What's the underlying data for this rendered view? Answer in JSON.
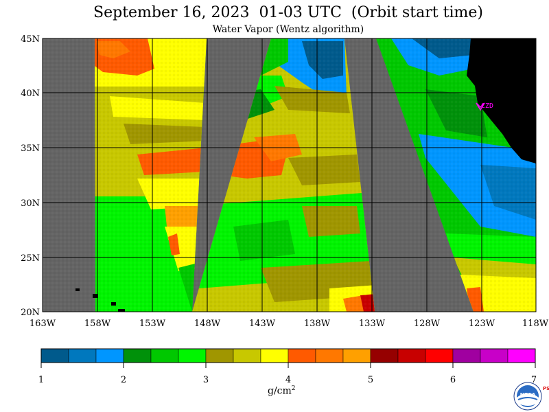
{
  "title": "September 16, 2023  01-03 UTC  (Orbit start time)",
  "subtitle": "Water Vapor (Wentz algorithm)",
  "lat_labels": [
    "45N",
    "40N",
    "35N",
    "30N",
    "25N",
    "20N"
  ],
  "lon_labels": [
    "163W",
    "158W",
    "153W",
    "148W",
    "143W",
    "138W",
    "133W",
    "128W",
    "123W",
    "118W"
  ],
  "colorbar": {
    "colors": [
      "#005a8c",
      "#0078be",
      "#0096ff",
      "#00910a",
      "#00c800",
      "#00f500",
      "#a09600",
      "#c8c800",
      "#ffff00",
      "#ff5a00",
      "#ff7800",
      "#ffa000",
      "#960000",
      "#c80000",
      "#ff0000",
      "#a000a0",
      "#c800c8",
      "#ff00ff"
    ],
    "tick_labels": [
      "1",
      "2",
      "3",
      "4",
      "5",
      "6",
      "7"
    ],
    "units": "g/cm",
    "units_sup": "2"
  },
  "station_label": "CZD",
  "colors": {
    "no_data": "#646464",
    "land": "#000000",
    "marker": "#ff00ff"
  },
  "logo": {
    "text": "NOAA",
    "side_text": "PSL"
  }
}
